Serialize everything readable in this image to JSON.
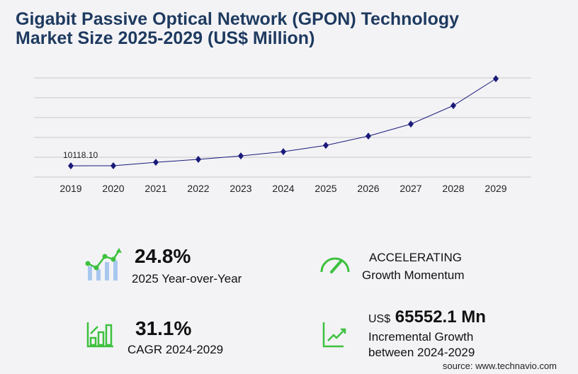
{
  "title_line1": "Gigabit Passive Optical Network (GPON) Technology",
  "title_line2": "Market Size 2025-2029 (US$ Million)",
  "chart_data": {
    "type": "line",
    "categories": [
      "2019",
      "2020",
      "2021",
      "2022",
      "2023",
      "2024",
      "2025",
      "2026",
      "2027",
      "2028",
      "2029"
    ],
    "values": [
      10118.1,
      10200,
      13300,
      15900,
      19000,
      22840,
      28504,
      36850,
      47660,
      64200,
      88392
    ],
    "data_labels": {
      "2019": "10118.10"
    },
    "ylim": [
      0,
      89100
    ],
    "grid": true,
    "line_color": "#1a1a7a"
  },
  "kpis": {
    "yoy_value": "24.8%",
    "yoy_label": "2025 Year-over-Year",
    "momentum_value": "ACCELERATING",
    "momentum_label": "Growth Momentum",
    "cagr_value": "31.1%",
    "cagr_label": "CAGR 2024-2029",
    "incr_prefix": "US$",
    "incr_value": "65552.1 Mn",
    "incr_label1": "Incremental Growth",
    "incr_label2": "between 2024-2029"
  },
  "source": "source: www.technavio.com",
  "colors": {
    "accent_green": "#3ec13e",
    "icon_blue": "#a9c8f0",
    "title": "#1e3a5f"
  }
}
